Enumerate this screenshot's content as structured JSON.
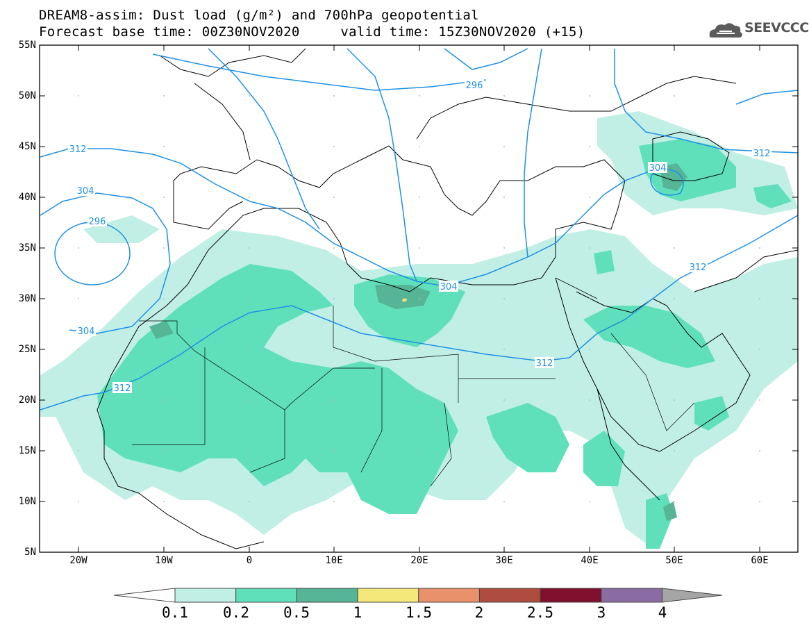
{
  "header": {
    "title_line1": "DREAM8-assim: Dust load (g/m²) and 700hPa geopotential",
    "title_line2": "Forecast base time: 00Z30NOV2020     valid time: 15Z30NOV2020 (+15)"
  },
  "logo": {
    "text": "SEEVCCC",
    "icon": "cloud-logo-icon"
  },
  "map": {
    "lat_labels": [
      "55N",
      "50N",
      "45N",
      "40N",
      "35N",
      "30N",
      "25N",
      "20N",
      "15N",
      "10N",
      "5N"
    ],
    "lon_labels": [
      "20W",
      "10W",
      "0",
      "10E",
      "20E",
      "30E",
      "40E",
      "50E",
      "60E"
    ],
    "contour_labels": [
      "296",
      "312",
      "304",
      "296",
      "304",
      "312",
      "304",
      "304",
      "312",
      "312",
      "312"
    ]
  },
  "colorbar": {
    "labels": [
      "0.1",
      "0.2",
      "0.5",
      "1",
      "1.5",
      "2",
      "2.5",
      "3",
      "4"
    ],
    "colors": [
      "#ffffff",
      "#c1efe6",
      "#5fe0bb",
      "#56b597",
      "#f5e87b",
      "#e9916b",
      "#ad4c3f",
      "#80102e",
      "#8a6ba2",
      "#a5a5a5"
    ]
  },
  "colors": {
    "contour": "#1e90e6",
    "dust_light": "#c1efe6",
    "dust_mid": "#5fe0bb",
    "dust_dark": "#56b597"
  }
}
